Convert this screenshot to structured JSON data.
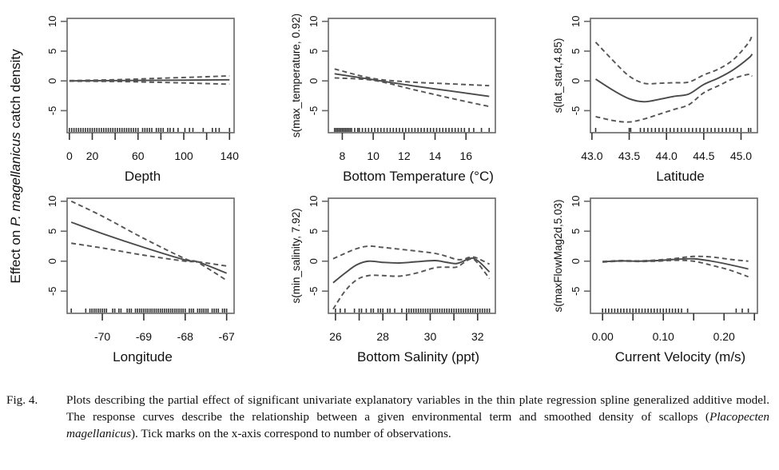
{
  "figure": {
    "shared_ylabel_prefix": "Effect on ",
    "shared_ylabel_italic": "P. magellanicus",
    "shared_ylabel_suffix": " catch density",
    "colors": {
      "line": "#4a4a4a",
      "band": "#555555",
      "frame": "#666666",
      "rug": "#111111",
      "text": "#111111"
    }
  },
  "caption": {
    "label": "Fig. 4.",
    "text_before": "Plots describing the partial effect of significant univariate explanatory variables in the thin plate regression spline generalized additive model. The response curves describe the relationship between a given environmental term and smoothed density of scallops (",
    "italic": "Placopecten magellanicus",
    "text_after": "). Tick marks on the x-axis correspond to number of observations."
  },
  "chart_data": [
    {
      "type": "line",
      "id": "depth",
      "title": "",
      "xlabel": "Depth",
      "ylabel": "",
      "xlim": [
        -2,
        144
      ],
      "ylim": [
        -8.7,
        10.5
      ],
      "xticks": [
        0,
        20,
        40,
        60,
        80,
        100,
        120,
        140
      ],
      "xticklabels": [
        "0",
        "20",
        "",
        "60",
        "",
        "100",
        "",
        "140"
      ],
      "yticks": [
        -5,
        0,
        5,
        10
      ],
      "yticklabels": [
        "-5",
        "0",
        "5",
        "10"
      ],
      "series": [
        {
          "name": "fit",
          "style": "solid",
          "x": [
            0,
            40,
            80,
            120,
            140
          ],
          "y": [
            0.0,
            0.05,
            0.1,
            0.15,
            0.18
          ]
        },
        {
          "name": "upper",
          "style": "dashed",
          "x": [
            0,
            40,
            80,
            120,
            140
          ],
          "y": [
            0.05,
            0.2,
            0.45,
            0.7,
            0.85
          ]
        },
        {
          "name": "lower",
          "style": "dashed",
          "x": [
            0,
            40,
            80,
            120,
            140
          ],
          "y": [
            -0.05,
            -0.1,
            -0.25,
            -0.45,
            -0.55
          ]
        }
      ],
      "rug": [
        0,
        2,
        4,
        6,
        8,
        10,
        12,
        14,
        16,
        18,
        20,
        22,
        24,
        26,
        28,
        30,
        32,
        34,
        36,
        38,
        40,
        42,
        44,
        46,
        48,
        50,
        52,
        54,
        56,
        58,
        60,
        64,
        66,
        68,
        70,
        72,
        76,
        78,
        80,
        82,
        86,
        88,
        91,
        95,
        101,
        105,
        108,
        117,
        125,
        128,
        131,
        140
      ]
    },
    {
      "type": "line",
      "id": "temperature",
      "title": "",
      "xlabel": "Bottom Temperature (°C)",
      "ylabel": "s(max_temperature, 0.92)",
      "xlim": [
        7.1,
        17.9
      ],
      "ylim": [
        -8.7,
        10.5
      ],
      "xticks": [
        8,
        10,
        12,
        14,
        16
      ],
      "xticklabels": [
        "8",
        "10",
        "12",
        "14",
        "16"
      ],
      "yticks": [
        -5,
        0,
        5,
        10
      ],
      "yticklabels": [
        "-5",
        "0",
        "5",
        "10"
      ],
      "series": [
        {
          "name": "fit",
          "style": "solid",
          "x": [
            7.5,
            10,
            12.5,
            15,
            17.5
          ],
          "y": [
            1.2,
            0.2,
            -0.8,
            -1.7,
            -2.6
          ]
        },
        {
          "name": "upper",
          "style": "dashed",
          "x": [
            7.5,
            10,
            12.5,
            15,
            17.5
          ],
          "y": [
            2.0,
            0.4,
            -0.2,
            -0.5,
            -0.8
          ]
        },
        {
          "name": "lower",
          "style": "dashed",
          "x": [
            7.5,
            10,
            12.5,
            15,
            17.5
          ],
          "y": [
            0.5,
            0.1,
            -1.4,
            -2.9,
            -4.3
          ]
        }
      ],
      "rug": [
        7.5,
        7.6,
        7.7,
        7.8,
        7.9,
        8.0,
        8.1,
        8.2,
        8.3,
        8.4,
        8.5,
        8.6,
        8.8,
        9.0,
        9.1,
        9.3,
        9.5,
        9.7,
        9.9,
        10.1,
        10.3,
        10.5,
        10.7,
        10.9,
        11.1,
        11.3,
        11.5,
        11.7,
        11.9,
        12.1,
        12.3,
        12.5,
        12.7,
        12.9,
        13.1,
        13.3,
        13.5,
        13.7,
        13.9,
        14.1,
        14.3,
        14.5,
        14.7,
        14.9,
        15.1,
        15.3,
        15.5,
        15.7,
        15.9,
        16.2,
        16.5,
        17.0,
        17.5
      ]
    },
    {
      "type": "line",
      "id": "latitude",
      "title": "",
      "xlabel": "Latitude",
      "ylabel": "s(lat_start,4.85)",
      "xlim": [
        42.98,
        45.22
      ],
      "ylim": [
        -8.7,
        10.5
      ],
      "xticks": [
        43.0,
        43.5,
        44.0,
        44.5,
        45.0
      ],
      "xticklabels": [
        "43.0",
        "43.5",
        "44.0",
        "44.5",
        "45.0"
      ],
      "yticks": [
        -5,
        0,
        5,
        10
      ],
      "yticklabels": [
        "-5",
        "0",
        "5",
        "10"
      ],
      "series": [
        {
          "name": "fit",
          "style": "solid",
          "x": [
            43.05,
            43.3,
            43.5,
            43.7,
            43.9,
            44.1,
            44.3,
            44.5,
            44.7,
            44.9,
            45.1,
            45.15
          ],
          "y": [
            0.3,
            -1.7,
            -3.0,
            -3.5,
            -3.1,
            -2.6,
            -2.2,
            -0.6,
            0.5,
            1.9,
            3.8,
            4.5
          ]
        },
        {
          "name": "upper",
          "style": "dashed",
          "x": [
            43.05,
            43.3,
            43.5,
            43.7,
            43.9,
            44.1,
            44.3,
            44.5,
            44.7,
            44.9,
            45.1,
            45.15
          ],
          "y": [
            6.5,
            3.2,
            0.8,
            -0.4,
            -0.4,
            -0.3,
            -0.2,
            1.0,
            2.0,
            3.6,
            6.4,
            7.8
          ]
        },
        {
          "name": "lower",
          "style": "dashed",
          "x": [
            43.05,
            43.3,
            43.5,
            43.7,
            43.9,
            44.1,
            44.3,
            44.5,
            44.7,
            44.9,
            45.1,
            45.15
          ],
          "y": [
            -6.0,
            -6.7,
            -6.9,
            -6.4,
            -5.6,
            -4.8,
            -4.0,
            -2.0,
            -0.8,
            0.4,
            1.1,
            0.8
          ]
        }
      ],
      "rug": [
        43.05,
        43.5,
        43.52,
        43.65,
        43.7,
        43.75,
        43.8,
        43.85,
        43.9,
        43.95,
        44.0,
        44.05,
        44.1,
        44.15,
        44.2,
        44.25,
        44.3,
        44.35,
        44.4,
        44.45,
        44.5,
        44.55,
        44.6,
        44.65,
        44.7,
        44.75,
        44.8,
        44.85,
        44.9,
        44.95,
        45.0,
        45.1,
        45.13
      ]
    },
    {
      "type": "line",
      "id": "longitude",
      "title": "",
      "xlabel": "Longitude",
      "ylabel": "",
      "xlim": [
        -70.85,
        -66.82
      ],
      "ylim": [
        -8.7,
        10.5
      ],
      "xticks": [
        -70,
        -69,
        -68,
        -67
      ],
      "xticklabels": [
        "-70",
        "-69",
        "-68",
        "-67"
      ],
      "yticks": [
        -5,
        0,
        5,
        10
      ],
      "yticklabels": [
        "-5",
        "0",
        "5",
        "10"
      ],
      "series": [
        {
          "name": "fit",
          "style": "solid",
          "x": [
            -70.75,
            -70,
            -69,
            -68,
            -67.7,
            -67
          ],
          "y": [
            6.5,
            4.6,
            2.3,
            0.2,
            -0.1,
            -2.0
          ]
        },
        {
          "name": "upper",
          "style": "dashed",
          "x": [
            -70.75,
            -70,
            -69,
            -68,
            -67.7,
            -67
          ],
          "y": [
            10.0,
            7.5,
            3.8,
            0.4,
            -0.2,
            -3.2
          ]
        },
        {
          "name": "lower",
          "style": "dashed",
          "x": [
            -70.75,
            -70,
            -69,
            -68,
            -67.7,
            -67
          ],
          "y": [
            3.0,
            2.2,
            1.0,
            0.0,
            -0.1,
            -0.8
          ]
        }
      ],
      "rug": [
        -70.75,
        -70.4,
        -70.3,
        -70.25,
        -70.2,
        -70.15,
        -70.1,
        -70.05,
        -70.0,
        -69.95,
        -69.9,
        -69.75,
        -69.7,
        -69.6,
        -69.55,
        -69.4,
        -69.35,
        -69.3,
        -69.2,
        -69.15,
        -69.1,
        -69.05,
        -69.0,
        -68.95,
        -68.9,
        -68.85,
        -68.8,
        -68.75,
        -68.7,
        -68.65,
        -68.6,
        -68.55,
        -68.5,
        -68.45,
        -68.4,
        -68.35,
        -68.3,
        -68.25,
        -68.2,
        -68.15,
        -68.1,
        -68.05,
        -68.0,
        -67.9,
        -67.85,
        -67.8,
        -67.7,
        -67.65,
        -67.6,
        -67.55,
        -67.5,
        -67.45,
        -67.35,
        -67.3,
        -67.25,
        -67.2,
        -67.1,
        -67.05,
        -67.0
      ]
    },
    {
      "type": "line",
      "id": "salinity",
      "title": "",
      "xlabel": "Bottom Salinity (ppt)",
      "ylabel": "s(min_salinity, 7.92)",
      "xlim": [
        25.7,
        32.75
      ],
      "ylim": [
        -8.7,
        10.5
      ],
      "xticks": [
        26,
        27,
        28,
        29,
        30,
        31,
        32
      ],
      "xticklabels": [
        "26",
        "",
        "28",
        "",
        "30",
        "",
        "32"
      ],
      "yticks": [
        -5,
        0,
        5,
        10
      ],
      "yticklabels": [
        "-5",
        "0",
        "5",
        "10"
      ],
      "series": [
        {
          "name": "fit",
          "style": "solid",
          "x": [
            25.9,
            26.4,
            26.9,
            27.4,
            28.0,
            28.7,
            29.4,
            30.2,
            30.7,
            31.1,
            31.4,
            31.6,
            31.8,
            32.0,
            32.2,
            32.5
          ],
          "y": [
            -3.6,
            -2.0,
            -0.6,
            0.0,
            -0.2,
            -0.3,
            -0.1,
            0.1,
            -0.2,
            -0.4,
            0.0,
            0.4,
            0.5,
            0.1,
            -0.6,
            -1.8
          ]
        },
        {
          "name": "upper",
          "style": "dashed",
          "x": [
            25.9,
            26.4,
            26.9,
            27.4,
            28.0,
            28.7,
            29.4,
            30.2,
            30.7,
            31.1,
            31.4,
            31.6,
            31.8,
            32.0,
            32.2,
            32.5
          ],
          "y": [
            0.4,
            1.3,
            2.1,
            2.5,
            2.3,
            2.0,
            1.7,
            1.3,
            0.8,
            0.3,
            0.3,
            0.6,
            0.7,
            0.5,
            0.1,
            -0.5
          ]
        },
        {
          "name": "lower",
          "style": "dashed",
          "x": [
            25.9,
            26.4,
            26.9,
            27.4,
            28.0,
            28.7,
            29.4,
            30.2,
            30.7,
            31.1,
            31.4,
            31.6,
            31.8,
            32.0,
            32.2,
            32.5
          ],
          "y": [
            -8.0,
            -5.0,
            -3.1,
            -2.4,
            -2.4,
            -2.5,
            -2.0,
            -1.1,
            -1.0,
            -1.0,
            -0.3,
            0.2,
            0.4,
            -0.3,
            -1.3,
            -2.9
          ]
        }
      ],
      "rug": [
        26.0,
        26.2,
        26.4,
        26.8,
        27.0,
        27.1,
        27.3,
        27.5,
        27.6,
        27.8,
        27.9,
        28.0,
        28.2,
        28.3,
        28.5,
        28.8,
        29.0,
        29.1,
        29.2,
        29.3,
        29.4,
        29.5,
        29.6,
        29.7,
        29.8,
        29.9,
        30.0,
        30.1,
        30.2,
        30.3,
        30.4,
        30.5,
        30.6,
        30.7,
        30.8,
        30.9,
        31.0,
        31.1,
        31.2,
        31.3,
        31.4,
        31.5,
        31.6,
        31.7,
        31.8,
        31.9,
        32.0,
        32.1,
        32.2,
        32.3,
        32.4,
        32.5
      ]
    },
    {
      "type": "line",
      "id": "velocity",
      "title": "",
      "xlabel": "Current Velocity (m/s)",
      "ylabel": "s(maxFlowMag2d,5.03)",
      "xlim": [
        -0.02,
        0.255
      ],
      "ylim": [
        -8.7,
        10.5
      ],
      "xticks": [
        0.0,
        0.05,
        0.1,
        0.15,
        0.2,
        0.25
      ],
      "xticklabels": [
        "0.00",
        "",
        "0.10",
        "",
        "0.20",
        ""
      ],
      "yticks": [
        -5,
        0,
        5,
        10
      ],
      "yticklabels": [
        "-5",
        "0",
        "5",
        "10"
      ],
      "series": [
        {
          "name": "fit",
          "style": "solid",
          "x": [
            0.0,
            0.03,
            0.06,
            0.09,
            0.12,
            0.15,
            0.18,
            0.21,
            0.24
          ],
          "y": [
            -0.1,
            0.05,
            0.0,
            0.1,
            0.3,
            0.4,
            0.0,
            -0.6,
            -1.3
          ]
        },
        {
          "name": "upper",
          "style": "dashed",
          "x": [
            0.0,
            0.03,
            0.06,
            0.09,
            0.12,
            0.15,
            0.18,
            0.21,
            0.24
          ],
          "y": [
            -0.05,
            0.1,
            0.05,
            0.2,
            0.45,
            0.8,
            0.7,
            0.3,
            0.0
          ]
        },
        {
          "name": "lower",
          "style": "dashed",
          "x": [
            0.0,
            0.03,
            0.06,
            0.09,
            0.12,
            0.15,
            0.18,
            0.21,
            0.24
          ],
          "y": [
            -0.15,
            0.0,
            -0.05,
            0.0,
            0.15,
            0.0,
            -0.7,
            -1.5,
            -2.6
          ]
        }
      ],
      "rug": [
        0.0,
        0.005,
        0.01,
        0.015,
        0.02,
        0.025,
        0.03,
        0.035,
        0.04,
        0.045,
        0.05,
        0.055,
        0.06,
        0.065,
        0.07,
        0.075,
        0.08,
        0.085,
        0.09,
        0.095,
        0.1,
        0.105,
        0.11,
        0.115,
        0.12,
        0.125,
        0.13,
        0.14,
        0.22,
        0.23,
        0.24
      ]
    }
  ]
}
